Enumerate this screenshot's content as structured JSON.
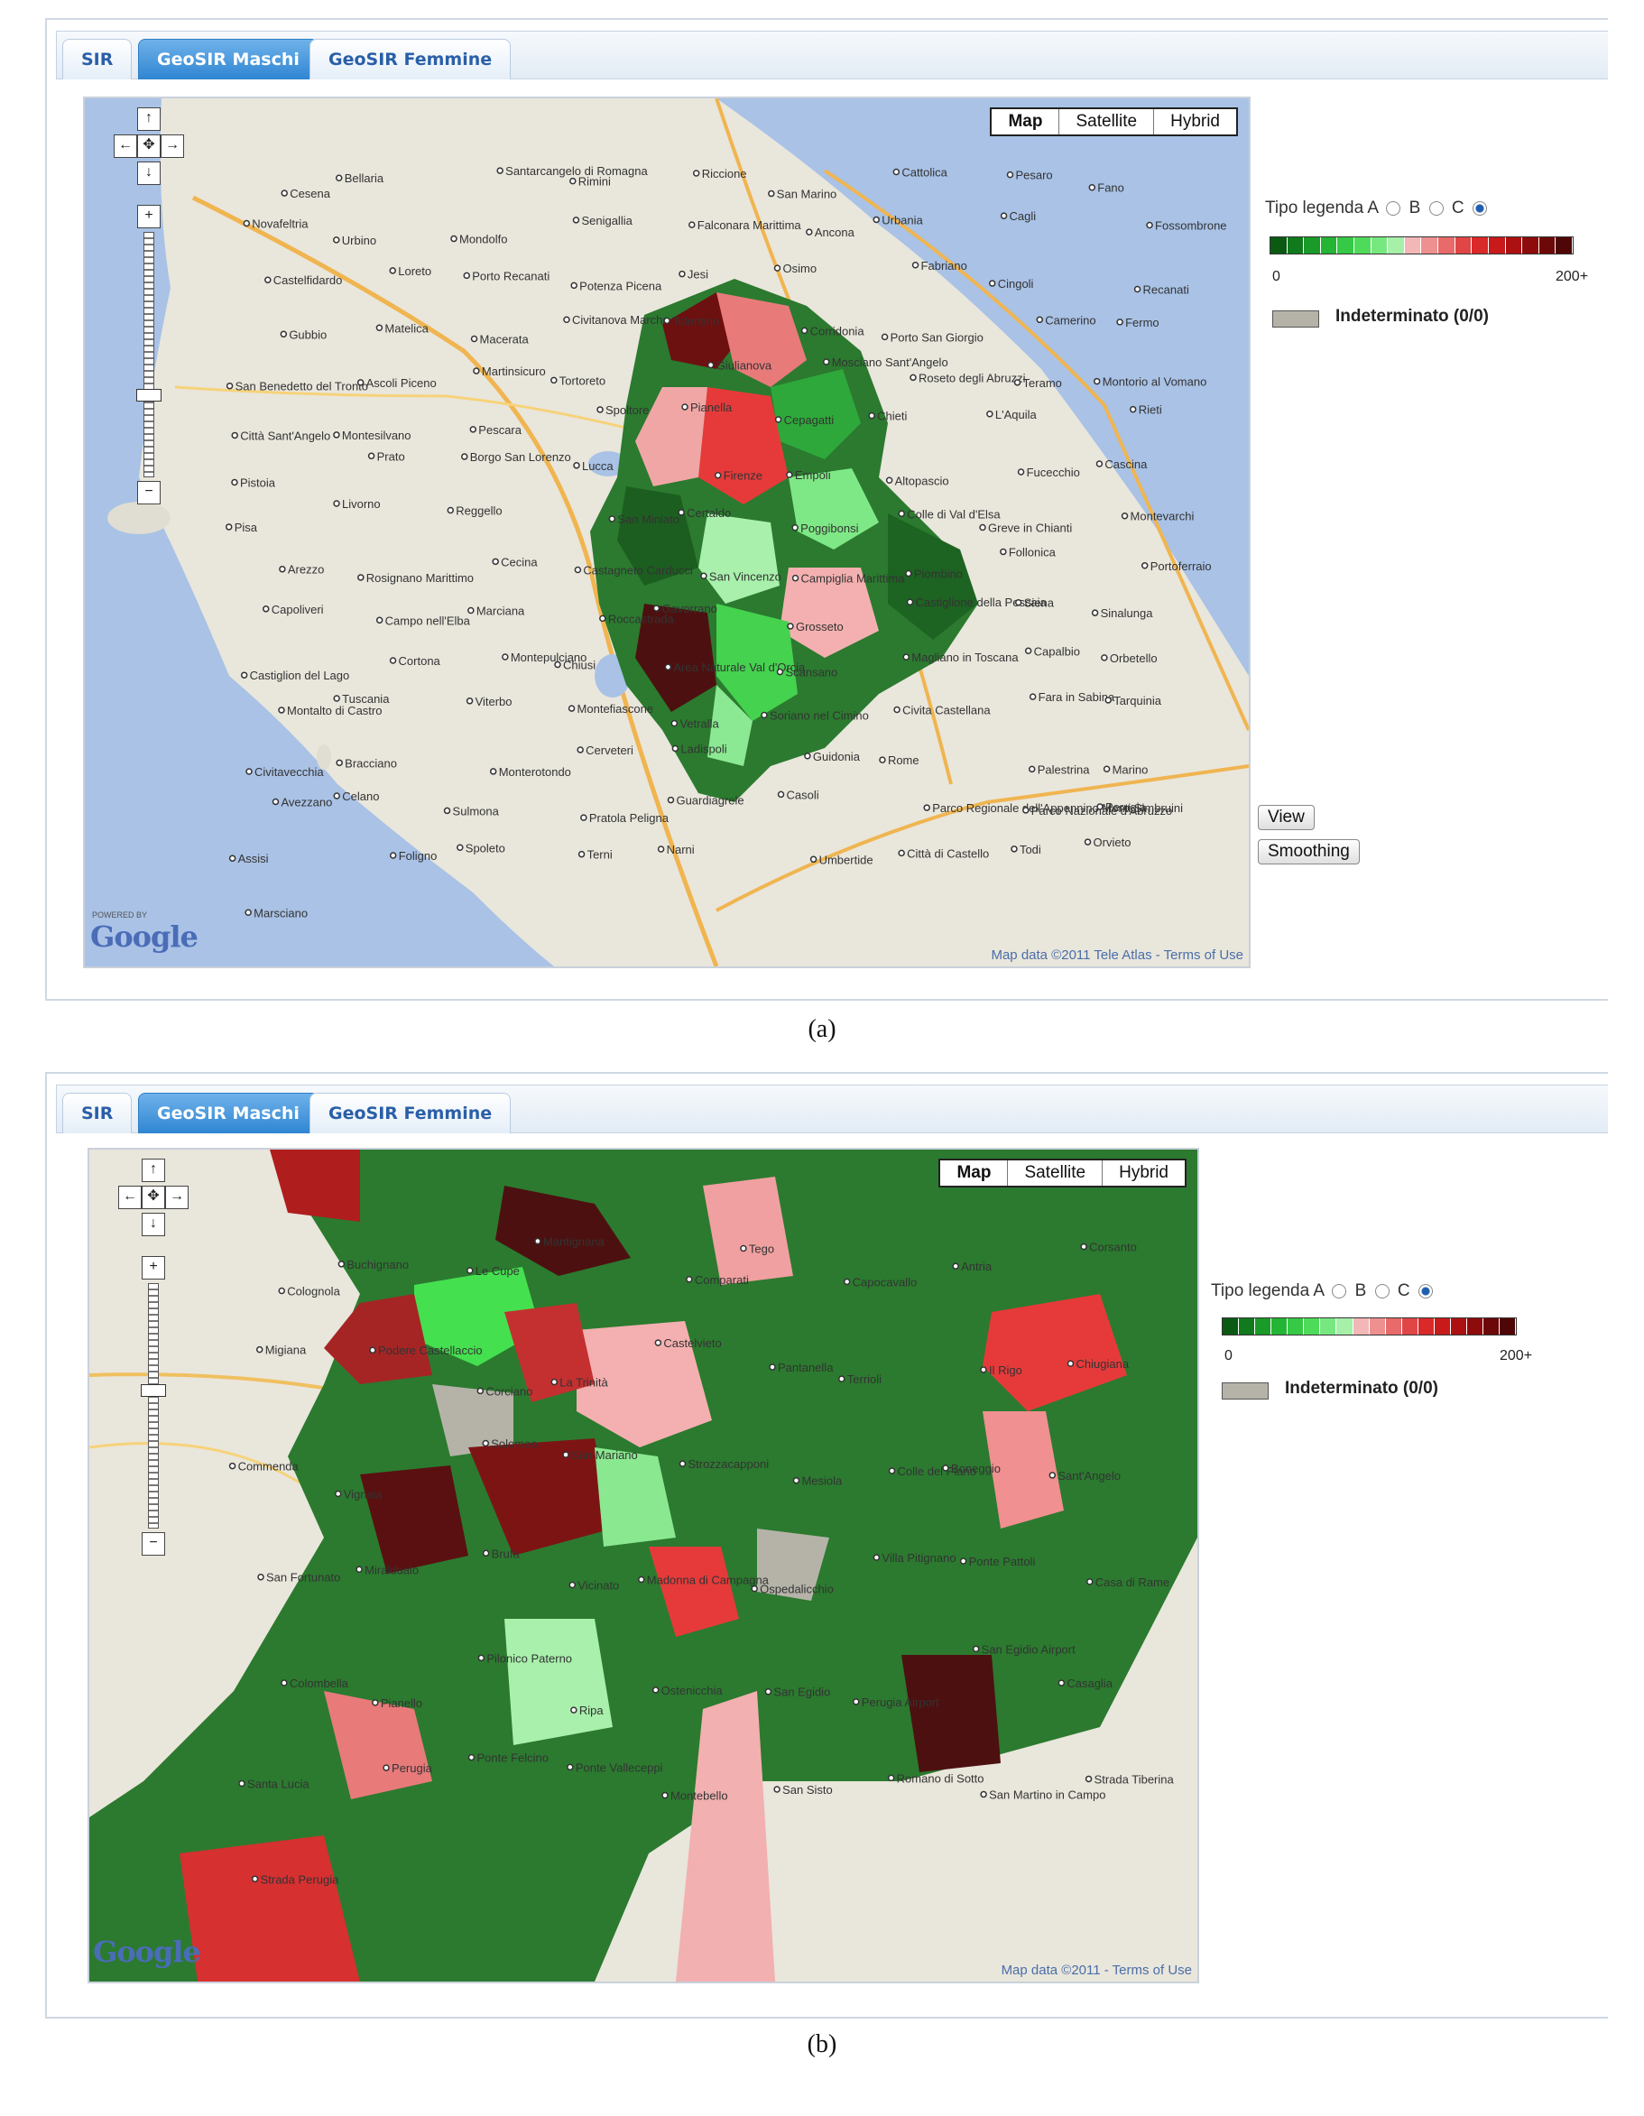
{
  "tabs": [
    "SIR",
    "GeoSIR Maschi",
    "GeoSIR Femmine"
  ],
  "active_tab": "GeoSIR Maschi",
  "map_types": [
    "Map",
    "Satellite",
    "Hybrid"
  ],
  "legend": {
    "type_label": "Tipo legenda A",
    "option_b": "B",
    "option_c": "C",
    "selected": "C",
    "min_label": "0",
    "max_label": "200+",
    "indeterminate": "Indeterminato (0/0)",
    "swatch_colors": [
      "#0b5a14",
      "#117a1d",
      "#1a9a28",
      "#24b534",
      "#35c945",
      "#4fdb5a",
      "#77e880",
      "#a6f0aa",
      "#f4b7b7",
      "#ee9090",
      "#e86a6a",
      "#e04646",
      "#d92929",
      "#c81a1a",
      "#ad1010",
      "#8e0b0b",
      "#6d0808",
      "#4f0606"
    ]
  },
  "buttons": {
    "view": "View",
    "smoothing": "Smoothing"
  },
  "panel_a": {
    "places": [
      "Cesena",
      "Bellaria",
      "Santarcangelo di Romagna",
      "Rimini",
      "Riccione",
      "San Marino",
      "Cattolica",
      "Pesaro",
      "Fano",
      "Novafeltria",
      "Urbino",
      "Mondolfo",
      "Senigallia",
      "Falconara Marittima",
      "Ancona",
      "Urbania",
      "Cagli",
      "Fossombrone",
      "Castelfidardo",
      "Loreto",
      "Porto Recanati",
      "Potenza Picena",
      "Jesi",
      "Osimo",
      "Fabriano",
      "Cingoli",
      "Recanati",
      "Gubbio",
      "Matelica",
      "Macerata",
      "Civitanova Marche",
      "Tolentino",
      "Corridonia",
      "Porto San Giorgio",
      "Camerino",
      "Fermo",
      "San Benedetto del Tronto",
      "Ascoli Piceno",
      "Martinsicuro",
      "Tortoreto",
      "Giulianova",
      "Mosciano Sant'Angelo",
      "Roseto degli Abruzzi",
      "Teramo",
      "Montorio al Vomano",
      "Città Sant'Angelo",
      "Montesilvano",
      "Pescara",
      "Spoltore",
      "Pianella",
      "Cepagatti",
      "Chieti",
      "L'Aquila",
      "Rieti",
      "Pistoia",
      "Prato",
      "Borgo San Lorenzo",
      "Lucca",
      "Firenze",
      "Empoli",
      "Altopascio",
      "Fucecchio",
      "Cascina",
      "Pisa",
      "Livorno",
      "Reggello",
      "San Miniato",
      "Certaldo",
      "Poggibonsi",
      "Colle di Val d'Elsa",
      "Greve in Chianti",
      "Montevarchi",
      "Arezzo",
      "Rosignano Marittimo",
      "Cecina",
      "Castagneto Carducci",
      "San Vincenzo",
      "Campiglia Marittima",
      "Piombino",
      "Follonica",
      "Portoferraio",
      "Capoliveri",
      "Campo nell'Elba",
      "Marciana",
      "Roccastrada",
      "Gavorrano",
      "Grosseto",
      "Castiglione della Pescaia",
      "Siena",
      "Sinalunga",
      "Castiglion del Lago",
      "Cortona",
      "Montepulciano",
      "Chiusi",
      "Area Naturale Val d'Orcia",
      "Scansano",
      "Magliano in Toscana",
      "Capalbio",
      "Orbetello",
      "Montalto di Castro",
      "Tuscania",
      "Viterbo",
      "Montefiascone",
      "Vetralla",
      "Soriano nel Cimino",
      "Civita Castellana",
      "Fara in Sabina",
      "Tarquinia",
      "Civitavecchia",
      "Bracciano",
      "Monterotondo",
      "Cerveteri",
      "Ladispoli",
      "Guidonia",
      "Rome",
      "Palestrina",
      "Marino",
      "Avezzano",
      "Celano",
      "Sulmona",
      "Pratola Peligna",
      "Guardiagrele",
      "Casoli",
      "Parco Regionale dell'Appennino Monti Simbruini",
      "Parco Nazionale d'Abruzzo",
      "Perugia",
      "Assisi",
      "Foligno",
      "Spoleto",
      "Terni",
      "Narni",
      "Umbertide",
      "Città di Castello",
      "Todi",
      "Orvieto",
      "Marsciano"
    ],
    "attribution": "Map data ©2011 Tele Atlas - Terms of Use",
    "powered": "POWERED BY",
    "logo": "Google"
  },
  "panel_b": {
    "places": [
      "Colognola",
      "Buchignano",
      "Le Cupe",
      "Mantignana",
      "Comparati",
      "Tego",
      "Capocavallo",
      "Antria",
      "Corsanto",
      "Migiana",
      "Podere Castellaccio",
      "Corciano",
      "La Trinità",
      "Castelvieto",
      "Pantanella",
      "Terrioli",
      "Il Rigo",
      "Chiugiana",
      "Commenda",
      "Vignaia",
      "Solomeo",
      "San Mariano",
      "Strozzacapponi",
      "Mesiola",
      "Colle del Piano",
      "Boneggio",
      "Sant'Angelo",
      "San Fortunato",
      "Miraldualo",
      "Brufa",
      "Vicinato",
      "Madonna di Campagna",
      "Ospedalicchio",
      "Villa Pitignano",
      "Ponte Pattoli",
      "Casa di Rame",
      "Colombella",
      "Pianello",
      "Pilonico Paterno",
      "Ripa",
      "Ostenicchia",
      "San Egidio",
      "Perugia Airport",
      "San Egidio Airport",
      "Casaglia",
      "Santa Lucia",
      "Perugia",
      "Ponte Felcino",
      "Ponte Valleceppi",
      "Montebello",
      "San Sisto",
      "Romano di Sotto",
      "San Martino in Campo",
      "Strada Tiberina",
      "Strada Perugia"
    ],
    "attribution": "Map data ©2011 - Terms of Use",
    "logo": "Google"
  },
  "captions": [
    "(a)",
    "(b)"
  ]
}
